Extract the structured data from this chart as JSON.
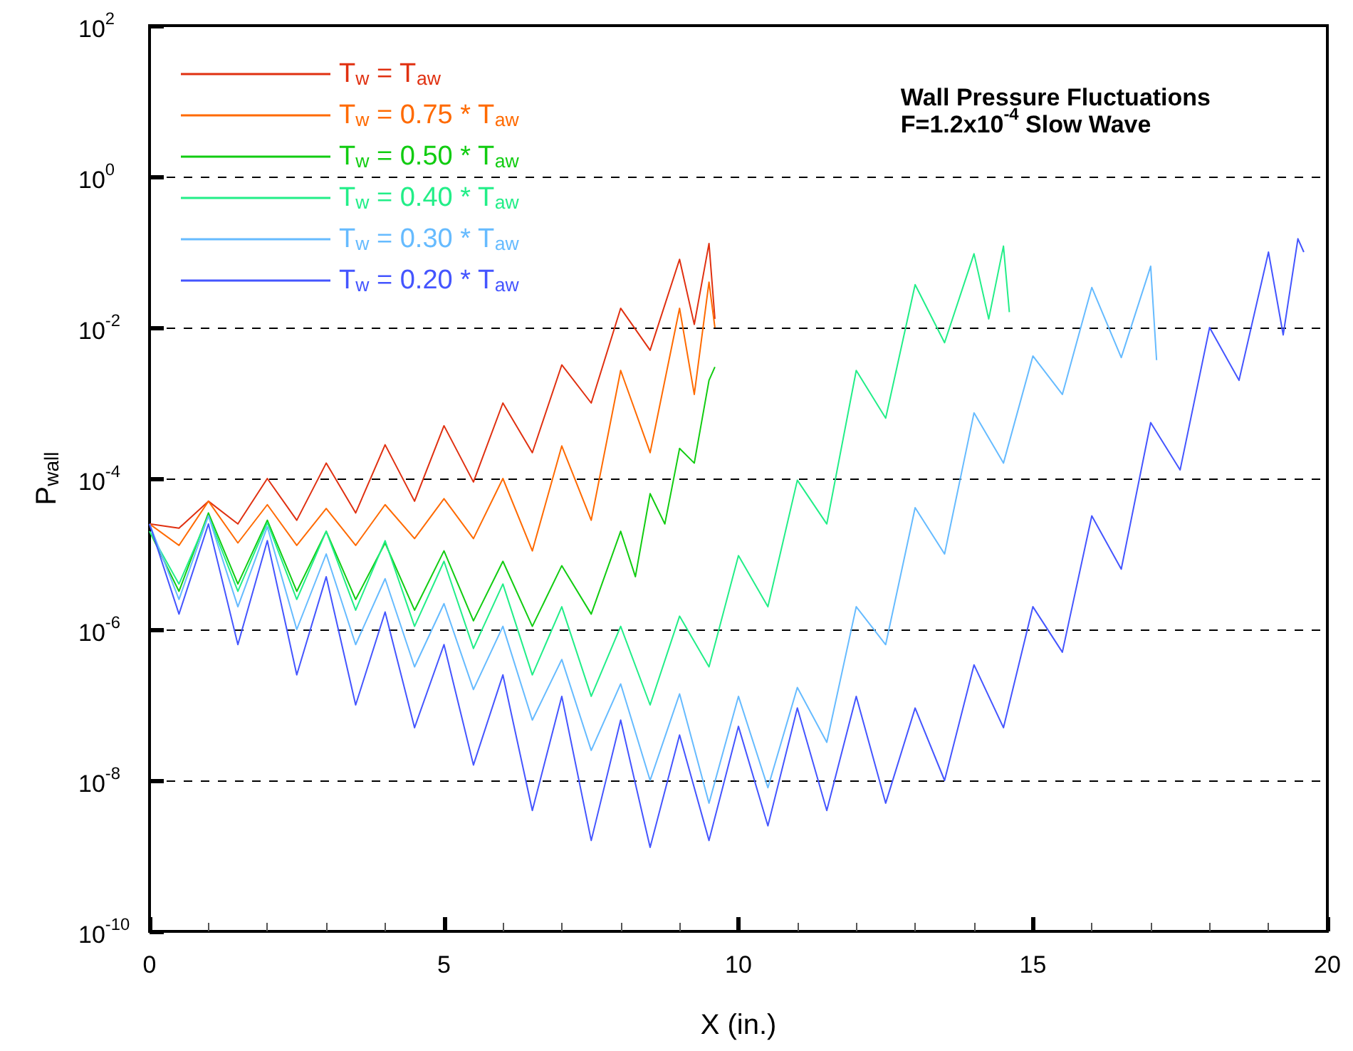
{
  "chart_data": {
    "type": "line",
    "title": "Wall Pressure Fluctuations",
    "subtitle": "F=1.2x10$^{-4}$ Slow Wave",
    "xlabel": "X (in.)",
    "ylabel": "P$_{wall}$",
    "log": "y",
    "grid": "y",
    "legend": "top left",
    "xlim": [
      0,
      20
    ],
    "xticks": [
      0,
      5,
      10,
      15,
      20
    ],
    "ylim": [
      1e-10,
      100
    ],
    "yticks": [
      {
        "value": 1e-10,
        "label": "10$^{-10}$"
      },
      {
        "value": 1e-08,
        "label": "10$^{-8}$"
      },
      {
        "value": 1e-06,
        "label": "10$^{-6}$"
      },
      {
        "value": 0.0001,
        "label": "10$^{-4}$"
      },
      {
        "value": 0.01,
        "label": "10$^{-2}$"
      },
      {
        "value": 1,
        "label": "10$^{0}$"
      },
      {
        "value": 100,
        "label": "10$^{2}$"
      }
    ],
    "series": [
      {
        "name": "T$_{w}$ = T$_{aw}$",
        "color": "#e03010",
        "x": [
          0,
          0.5,
          1,
          1.5,
          2,
          2.5,
          3,
          3.5,
          4,
          4.5,
          5,
          5.5,
          6,
          6.5,
          7,
          7.5,
          8,
          8.5,
          9,
          9.25,
          9.5,
          9.6
        ],
        "values": [
          2.5e-05,
          2.2e-05,
          5e-05,
          2.5e-05,
          0.0001,
          2.8e-05,
          0.00016,
          3.5e-05,
          0.00028,
          5e-05,
          0.0005,
          9e-05,
          0.001,
          0.00022,
          0.0032,
          0.001,
          0.018,
          0.005,
          0.08,
          0.011,
          0.13,
          0.013
        ]
      },
      {
        "name": "T$_{w}$ = 0.75 * T$_{aw}$",
        "color": "#ff6a00",
        "x": [
          0,
          0.5,
          1,
          1.5,
          2,
          2.5,
          3,
          3.5,
          4,
          4.5,
          5,
          5.5,
          6,
          6.5,
          7,
          7.5,
          8,
          8.5,
          9,
          9.25,
          9.5,
          9.6
        ],
        "values": [
          2.5e-05,
          1.3e-05,
          5e-05,
          1.4e-05,
          4.5e-05,
          1.3e-05,
          4e-05,
          1.3e-05,
          4.5e-05,
          1.6e-05,
          5.4e-05,
          1.6e-05,
          0.0001,
          1.1e-05,
          0.00027,
          2.8e-05,
          0.0027,
          0.00022,
          0.018,
          0.0013,
          0.04,
          0.01
        ]
      },
      {
        "name": "T$_{w}$ = 0.50 * T$_{aw}$",
        "color": "#11cc11",
        "x": [
          0,
          0.5,
          1,
          1.5,
          2,
          2.5,
          3,
          3.5,
          4,
          4.5,
          5,
          5.5,
          6,
          6.5,
          7,
          7.5,
          8,
          8.25,
          8.5,
          8.75,
          9,
          9.25,
          9.5,
          9.6
        ],
        "values": [
          2e-05,
          3.2e-06,
          3.5e-05,
          4e-06,
          2.8e-05,
          3.2e-06,
          2e-05,
          2.5e-06,
          1.4e-05,
          1.8e-06,
          1.1e-05,
          1.3e-06,
          8e-06,
          1.1e-06,
          7e-06,
          1.6e-06,
          2e-05,
          5e-06,
          6.3e-05,
          2.5e-05,
          0.00025,
          0.00016,
          0.002,
          0.003
        ]
      },
      {
        "name": "T$_{w}$ = 0.40 * T$_{aw}$",
        "color": "#22ee88",
        "x": [
          0,
          0.5,
          1,
          1.5,
          2,
          2.5,
          3,
          3.5,
          4,
          4.5,
          5,
          5.5,
          6,
          6.5,
          7,
          7.5,
          8,
          8.5,
          9,
          9.5,
          10,
          10.5,
          11,
          11.5,
          12,
          12.5,
          13,
          13.5,
          14,
          14.25,
          14.5,
          14.6
        ],
        "values": [
          2e-05,
          4e-06,
          3.2e-05,
          3.2e-06,
          2.6e-05,
          2.5e-06,
          2e-05,
          1.8e-06,
          1.5e-05,
          1.1e-06,
          8e-06,
          5.6e-07,
          4e-06,
          2.5e-07,
          2e-06,
          1.3e-07,
          1.1e-06,
          1e-07,
          1.5e-06,
          3.2e-07,
          9.5e-06,
          2e-06,
          9.5e-05,
          2.5e-05,
          0.0027,
          0.00063,
          0.037,
          0.0063,
          0.095,
          0.013,
          0.12,
          0.016
        ]
      },
      {
        "name": "T$_{w}$ = 0.30 * T$_{aw}$",
        "color": "#66bbff",
        "x": [
          0,
          0.5,
          1,
          1.5,
          2,
          2.5,
          3,
          3.5,
          4,
          4.5,
          5,
          5.5,
          6,
          6.5,
          7,
          7.5,
          8,
          8.5,
          9,
          9.5,
          10,
          10.5,
          11,
          11.5,
          12,
          12.5,
          13,
          13.5,
          14,
          14.5,
          15,
          15.5,
          16,
          16.5,
          17,
          17.1
        ],
        "values": [
          2.5e-05,
          2.5e-06,
          3.2e-05,
          2e-06,
          2.3e-05,
          1e-06,
          1e-05,
          6.3e-07,
          4.7e-06,
          3.2e-07,
          2.2e-06,
          1.6e-07,
          1.1e-06,
          6.3e-08,
          4e-07,
          2.5e-08,
          1.9e-07,
          1e-08,
          1.4e-07,
          5e-09,
          1.3e-07,
          8e-09,
          1.7e-07,
          3.2e-08,
          2e-06,
          6.3e-07,
          4.1e-05,
          1e-05,
          0.00074,
          0.00016,
          0.0042,
          0.0013,
          0.034,
          0.004,
          0.065,
          0.0037
        ]
      },
      {
        "name": "T$_{w}$ = 0.20 * T$_{aw}$",
        "color": "#4455ff",
        "x": [
          0,
          0.5,
          1,
          1.5,
          2,
          2.5,
          3,
          3.5,
          4,
          4.5,
          5,
          5.5,
          6,
          6.5,
          7,
          7.5,
          8,
          8.5,
          9,
          9.5,
          10,
          10.5,
          11,
          11.5,
          12,
          12.5,
          13,
          13.5,
          14,
          14.5,
          15,
          15.5,
          16,
          16.5,
          17,
          17.5,
          18,
          18.5,
          19,
          19.25,
          19.5,
          19.6
        ],
        "values": [
          2.5e-05,
          1.6e-06,
          2.5e-05,
          6.3e-07,
          1.5e-05,
          2.5e-07,
          5e-06,
          1e-07,
          1.7e-06,
          5e-08,
          6.3e-07,
          1.6e-08,
          2.5e-07,
          4e-09,
          1.3e-07,
          1.6e-09,
          6.3e-08,
          1.3e-09,
          4e-08,
          1.6e-09,
          5.2e-08,
          2.5e-09,
          9.1e-08,
          4e-09,
          1.3e-07,
          5e-09,
          9.1e-08,
          1e-08,
          3.4e-07,
          5e-08,
          2e-06,
          5e-07,
          3.2e-05,
          6.3e-06,
          0.00055,
          0.00013,
          0.01,
          0.002,
          0.1,
          0.008,
          0.15,
          0.1
        ]
      }
    ]
  }
}
